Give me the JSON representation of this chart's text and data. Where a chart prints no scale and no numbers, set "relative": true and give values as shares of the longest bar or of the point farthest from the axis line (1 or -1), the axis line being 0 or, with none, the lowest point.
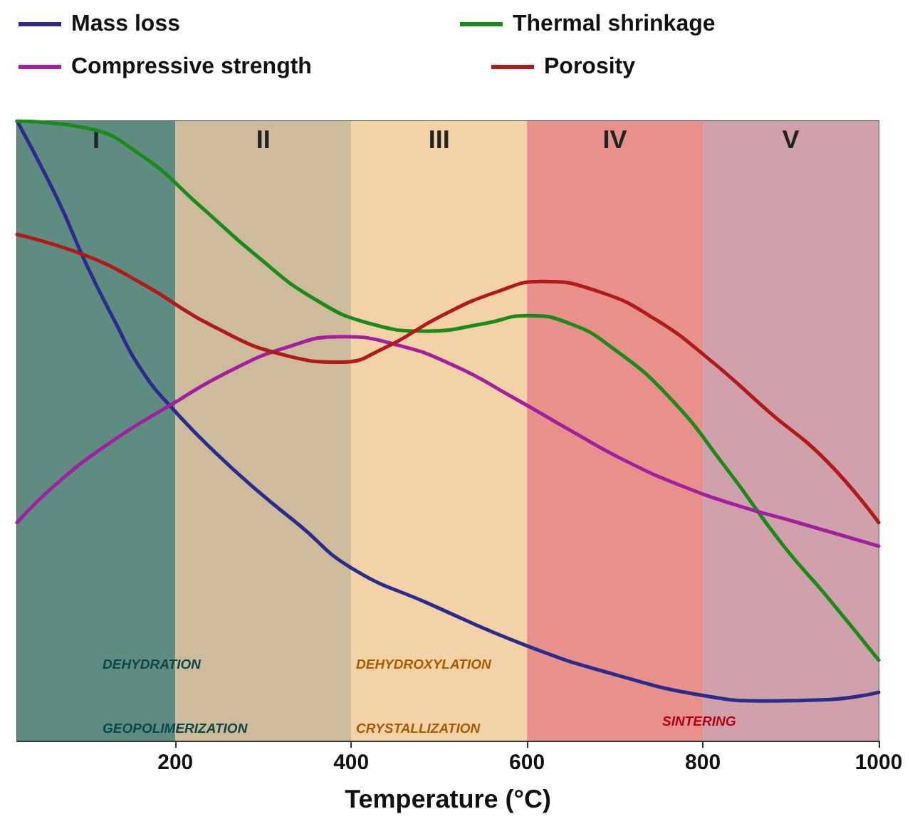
{
  "chart_data": {
    "type": "line",
    "relative": true,
    "xlabel": "Temperature (°C)",
    "xlim": [
      20,
      1000
    ],
    "xticks": [
      200,
      400,
      600,
      800,
      1000
    ],
    "grid": false,
    "legend": "top",
    "marker": "none",
    "line_style": "solid",
    "series": [
      {
        "name": "Mass loss",
        "color": "#2b2b8c",
        "x": [
          20,
          66,
          98,
          130,
          163,
          200,
          244,
          292,
          341,
          400,
          487,
          600,
          697,
          800,
          875,
          941,
          1000
        ],
        "values": [
          1,
          0.874,
          0.771,
          0.68,
          0.595,
          0.531,
          0.467,
          0.405,
          0.348,
          0.279,
          0.222,
          0.153,
          0.108,
          0.073,
          0.064,
          0.066,
          0.078
        ]
      },
      {
        "name": "Thermal shrinkage",
        "color": "#1a8a1a",
        "x": [
          20,
          98,
          163,
          228,
          292,
          357,
          422,
          487,
          551,
          600,
          649,
          697,
          762,
          827,
          892,
          941,
          1000
        ],
        "values": [
          1,
          0.989,
          0.943,
          0.863,
          0.783,
          0.714,
          0.673,
          0.661,
          0.673,
          0.686,
          0.673,
          0.634,
          0.554,
          0.439,
          0.314,
          0.233,
          0.13
        ]
      },
      {
        "name": "Compressive strength",
        "color": "#a020a0",
        "x": [
          20,
          66,
          130,
          195,
          260,
          325,
          389,
          454,
          519,
          584,
          649,
          713,
          778,
          843,
          908,
          1000
        ],
        "values": [
          0.352,
          0.416,
          0.485,
          0.542,
          0.595,
          0.634,
          0.652,
          0.638,
          0.604,
          0.554,
          0.501,
          0.451,
          0.41,
          0.378,
          0.352,
          0.314
        ]
      },
      {
        "name": "Porosity",
        "color": "#b01a1a",
        "x": [
          20,
          98,
          163,
          244,
          325,
          389,
          438,
          503,
          567,
          616,
          681,
          746,
          811,
          875,
          941,
          1000
        ],
        "values": [
          0.817,
          0.783,
          0.737,
          0.668,
          0.622,
          0.611,
          0.634,
          0.686,
          0.725,
          0.741,
          0.725,
          0.68,
          0.611,
          0.531,
          0.451,
          0.352
        ]
      }
    ],
    "bands": [
      {
        "axis": "x",
        "from": 20,
        "to": 200,
        "label": "I",
        "color": "#5f8c80"
      },
      {
        "axis": "x",
        "from": 200,
        "to": 400,
        "label": "II",
        "color": "#cdbb9c"
      },
      {
        "axis": "x",
        "from": 400,
        "to": 600,
        "label": "III",
        "color": "#f4d2a8"
      },
      {
        "axis": "x",
        "from": 600,
        "to": 800,
        "label": "IV",
        "color": "#e8918b"
      },
      {
        "axis": "x",
        "from": 800,
        "to": 1000,
        "label": "V",
        "color": "#d0a1ab"
      }
    ],
    "annotations": [
      "DEHYDRATION",
      "GEOPOLIMERIZATION",
      "DEHYDROXYLATION",
      "CRYSTALLIZATION",
      "SINTERING"
    ]
  }
}
